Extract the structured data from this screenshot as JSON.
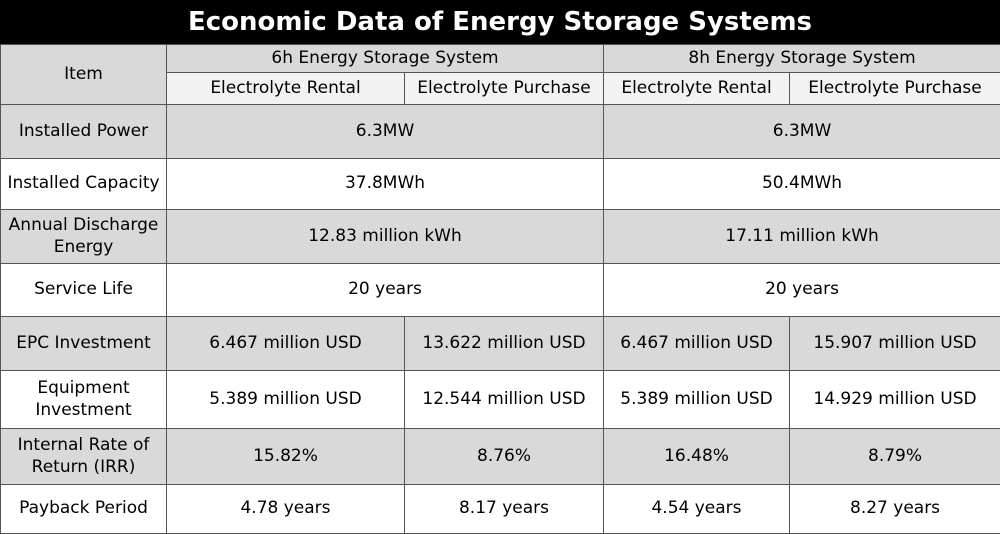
{
  "header": {
    "title": "Economic Data of Energy Storage Systems"
  },
  "table": {
    "item_header": "Item",
    "groups": [
      {
        "label": "6h Energy Storage System",
        "sub": [
          "Electrolyte Rental",
          "Electrolyte Purchase"
        ]
      },
      {
        "label": "8h Energy Storage System",
        "sub": [
          "Electrolyte Rental",
          "Electrolyte Purchase"
        ]
      }
    ],
    "rows": [
      [
        "Installed Power",
        "6.3MW",
        "6.3MW"
      ],
      [
        "Installed Capacity",
        "37.8MWh",
        "50.4MWh"
      ],
      [
        "Annual Discharge Energy",
        "12.83 million kWh",
        "17.11 million kWh"
      ],
      [
        "Service Life",
        "20 years",
        "20 years"
      ],
      [
        "EPC Investment",
        "6.467 million USD",
        "13.622 million USD",
        "6.467 million USD",
        "15.907 million USD"
      ],
      [
        "Equipment Investment",
        "5.389 million USD",
        "12.544 million USD",
        "5.389 million USD",
        "14.929 million USD"
      ],
      [
        "Internal Rate of Return (IRR)",
        "15.82%",
        "8.76%",
        "16.48%",
        "8.79%"
      ],
      [
        "Payback Period",
        "4.78 years",
        "8.17 years",
        "4.54 years",
        "8.27 years"
      ]
    ]
  }
}
